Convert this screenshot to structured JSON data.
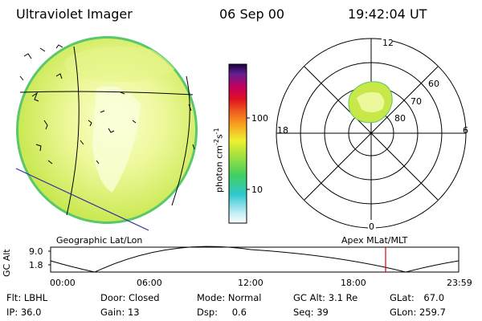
{
  "header": {
    "title": "Ultraviolet Imager",
    "date": "06 Sep 00",
    "time": "19:42:04 UT"
  },
  "colorbar": {
    "unit_label": "photon cm",
    "unit_exp1": "-2",
    "unit_mid": "s",
    "unit_exp2": "-1",
    "tick_100": "100",
    "tick_10": "10"
  },
  "polar": {
    "mlt_top": "12",
    "mlt_left": "18",
    "mlt_right": "6",
    "mlt_bottom": "0",
    "lat_60": "60",
    "lat_70": "70",
    "lat_80": "80"
  },
  "timeline": {
    "left_title": "Geographic Lat/Lon",
    "right_title": "Apex  MLat/MLT",
    "y_axis_label": "GC Alt",
    "y_top": "9.0",
    "y_bottom": "1.8",
    "x_ticks": [
      "00:00",
      "06:00",
      "12:00",
      "18:00",
      "23:59"
    ],
    "current_time_marker": "19:42",
    "marker_color": "#e00000"
  },
  "info": {
    "flt_label": "Flt:",
    "flt_value": "LBHL",
    "door_label": "Door:",
    "door_value": "Closed",
    "mode_label": "Mode:",
    "mode_value": "Normal",
    "gcalt_label": "GC Alt:",
    "gcalt_value": "3.1 Re",
    "glat_label": "GLat:",
    "glat_value": "67.0",
    "ip_label": "IP:",
    "ip_value": "36.0",
    "gain_label": "Gain:",
    "gain_value": "13",
    "dsp_label": "Dsp:",
    "dsp_value": "0.6",
    "seq_label": "Seq:",
    "seq_value": "39",
    "glon_label": "GLon:",
    "glon_value": "259.7"
  },
  "colors": {
    "aurora_outer": "#c8e84a",
    "aurora_inner": "#f4fbb0",
    "limb_green": "#5cc85c",
    "limb_cyan": "#48d8e0",
    "track_line": "#3030a0"
  }
}
